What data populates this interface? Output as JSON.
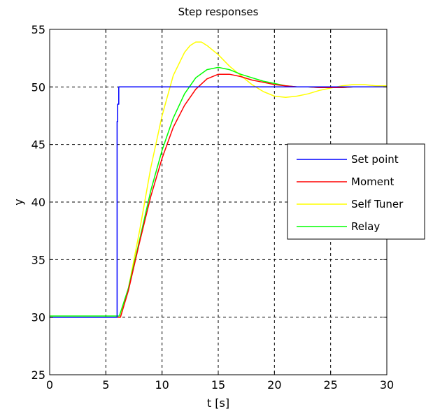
{
  "chart_data": {
    "type": "line",
    "title": "Step responses",
    "xlabel": "t [s]",
    "ylabel": "y",
    "xlim": [
      0,
      30
    ],
    "ylim": [
      25,
      55
    ],
    "xticks": [
      0,
      5,
      10,
      15,
      20,
      25,
      30
    ],
    "yticks": [
      25,
      30,
      35,
      40,
      45,
      50,
      55
    ],
    "grid": true,
    "grid_style": "dashed",
    "legend_position": "right",
    "series": [
      {
        "name": "Set point",
        "color": "#0000ff",
        "x": [
          0,
          6.0,
          6.0,
          6.05,
          6.05,
          6.15,
          6.15,
          30
        ],
        "y": [
          30,
          30,
          47,
          47,
          48.5,
          48.5,
          50,
          50
        ]
      },
      {
        "name": "Moment",
        "color": "#ff0000",
        "x": [
          0,
          6.3,
          7,
          8,
          9,
          10,
          11,
          12,
          13,
          14,
          15,
          16,
          17,
          18,
          19,
          20,
          21,
          22,
          23,
          24,
          25,
          26,
          27,
          28,
          29,
          30
        ],
        "y": [
          30,
          30,
          32.3,
          36.5,
          40.5,
          43.8,
          46.5,
          48.4,
          49.8,
          50.7,
          51.1,
          51.1,
          50.9,
          50.6,
          50.4,
          50.2,
          50.1,
          50.0,
          50.0,
          49.95,
          49.95,
          49.95,
          50.0,
          50.0,
          50.0,
          50.0
        ]
      },
      {
        "name": "Self Tuner",
        "color": "#ffff00",
        "x": [
          0,
          6.3,
          7,
          8,
          9,
          10,
          11,
          12,
          12.5,
          13,
          13.5,
          14,
          15,
          16,
          17,
          18,
          19,
          20,
          21,
          22,
          23,
          24,
          25,
          26,
          27,
          28,
          29,
          30
        ],
        "y": [
          30,
          30,
          32.5,
          37.5,
          43,
          47.5,
          51,
          53,
          53.6,
          53.9,
          53.9,
          53.6,
          52.8,
          51.8,
          51,
          50.2,
          49.6,
          49.2,
          49.1,
          49.2,
          49.4,
          49.7,
          49.9,
          50.1,
          50.2,
          50.2,
          50.1,
          50.1
        ]
      },
      {
        "name": "Relay",
        "color": "#00ff00",
        "x": [
          0,
          6.2,
          7,
          8,
          9,
          10,
          11,
          12,
          13,
          14,
          15,
          16,
          17,
          18,
          19,
          20,
          21,
          22,
          23,
          24,
          25,
          26,
          27,
          28,
          29,
          30
        ],
        "y": [
          30.1,
          30.1,
          32.5,
          36.7,
          41,
          44.5,
          47.3,
          49.4,
          50.8,
          51.5,
          51.7,
          51.5,
          51.1,
          50.8,
          50.5,
          50.3,
          50.1,
          50.0,
          50.0,
          49.95,
          49.95,
          49.95,
          50.0,
          50.0,
          50.0,
          50.0
        ]
      }
    ]
  }
}
